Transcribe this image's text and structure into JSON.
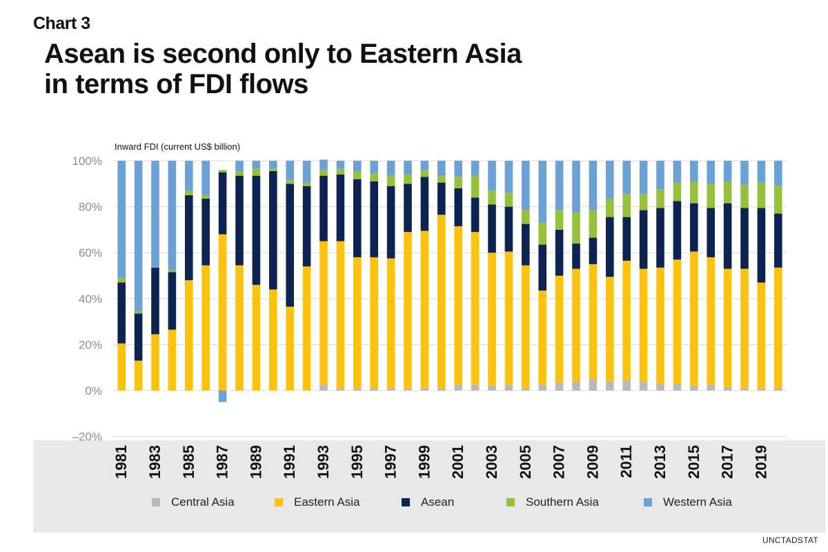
{
  "header": {
    "chart_label": "Chart 3",
    "title_line1": "Asean is second only to Eastern Asia",
    "title_line2": "in terms of FDI flows"
  },
  "source": "UNCTADSTAT",
  "colors": {
    "Central Asia": "#b9b9b9",
    "Eastern Asia": "#fcc20c",
    "Asean": "#0d2452",
    "Southern Asia": "#97c13b",
    "Western Asia": "#6aa2d6",
    "gridline": "#d8d8d8",
    "band": "#e8e8e8"
  },
  "chart_data": {
    "type": "bar",
    "stacked": true,
    "ylabel": "Inward FDI (current US$ billion)",
    "ylim": [
      -20,
      100
    ],
    "yticks": [
      -20,
      0,
      20,
      40,
      60,
      80,
      100
    ],
    "ytick_labels": [
      "–20%",
      "0%",
      "20%",
      "40%",
      "60%",
      "80%",
      "100%"
    ],
    "grid": true,
    "legend_position": "bottom",
    "categories": [
      "1981",
      "1982",
      "1983",
      "1984",
      "1985",
      "1986",
      "1987",
      "1988",
      "1989",
      "1990",
      "1991",
      "1992",
      "1993",
      "1994",
      "1995",
      "1996",
      "1997",
      "1998",
      "1999",
      "2000",
      "2001",
      "2002",
      "2003",
      "2004",
      "2005",
      "2006",
      "2007",
      "2008",
      "2009",
      "2010",
      "2011",
      "2012",
      "2013",
      "2014",
      "2015",
      "2016",
      "2017",
      "2018",
      "2019",
      "2020"
    ],
    "xtick_labels": [
      "1981",
      "1983",
      "1985",
      "1987",
      "1989",
      "1991",
      "1993",
      "1995",
      "1997",
      "1999",
      "2001",
      "2003",
      "2005",
      "2007",
      "2009",
      "2011",
      "2013",
      "2015",
      "2017",
      "2019"
    ],
    "series": [
      {
        "name": "Central Asia",
        "values": [
          0,
          0,
          0,
          0,
          0,
          0,
          0,
          0,
          0,
          0,
          0,
          0,
          2.5,
          1,
          1,
          1,
          1,
          1,
          1,
          1,
          2.5,
          2.5,
          2,
          2.5,
          1,
          2.5,
          3.5,
          4,
          5,
          4,
          4.5,
          4,
          3,
          3,
          2,
          2.5,
          1.5,
          1,
          1,
          1
        ]
      },
      {
        "name": "Eastern Asia",
        "values": [
          20.5,
          13,
          24.5,
          26.5,
          48,
          54.5,
          68,
          54.5,
          46,
          44,
          36.5,
          54,
          62.5,
          64,
          57,
          57,
          56.5,
          68,
          68.5,
          75.5,
          69,
          66.5,
          58,
          58,
          53.5,
          41,
          46.5,
          49,
          50,
          45.5,
          52,
          49,
          50.5,
          54,
          58.5,
          55.5,
          51.5,
          52,
          46,
          52.5
        ]
      },
      {
        "name": "Asean",
        "values": [
          26.5,
          20.5,
          29,
          25,
          37,
          29,
          27,
          39,
          47.5,
          51.5,
          53.5,
          35,
          28.5,
          29,
          34,
          33,
          31.5,
          21,
          23.5,
          14,
          16.5,
          15,
          21,
          19.5,
          18,
          20,
          20,
          11,
          11.5,
          26,
          19,
          25.5,
          26,
          25.5,
          21,
          21.5,
          28.5,
          26.5,
          32.5,
          23.5
        ]
      },
      {
        "name": "Southern Asia",
        "values": [
          2,
          1,
          0,
          1,
          2,
          1.5,
          1,
          2,
          3,
          1,
          1.5,
          1.5,
          2.5,
          2.5,
          3.5,
          3.5,
          4.5,
          4,
          3,
          3,
          5,
          9.5,
          6,
          6,
          6,
          9.5,
          8.5,
          13.5,
          12,
          8,
          10,
          7,
          8,
          8,
          9.5,
          10.5,
          9.5,
          10,
          11,
          12
        ]
      },
      {
        "name": "Western Asia",
        "values": [
          51,
          65.5,
          46.5,
          47.5,
          13,
          15,
          -5,
          4.5,
          3.5,
          3.5,
          8.5,
          9.5,
          4.5,
          3.5,
          4.5,
          5.5,
          6.5,
          6,
          4,
          6.5,
          7,
          6.5,
          13,
          14,
          21.5,
          27,
          21.5,
          22.5,
          21.5,
          16.5,
          14.5,
          14.5,
          12.5,
          9.5,
          9,
          10,
          9,
          10.5,
          9.5,
          11
        ]
      }
    ]
  }
}
